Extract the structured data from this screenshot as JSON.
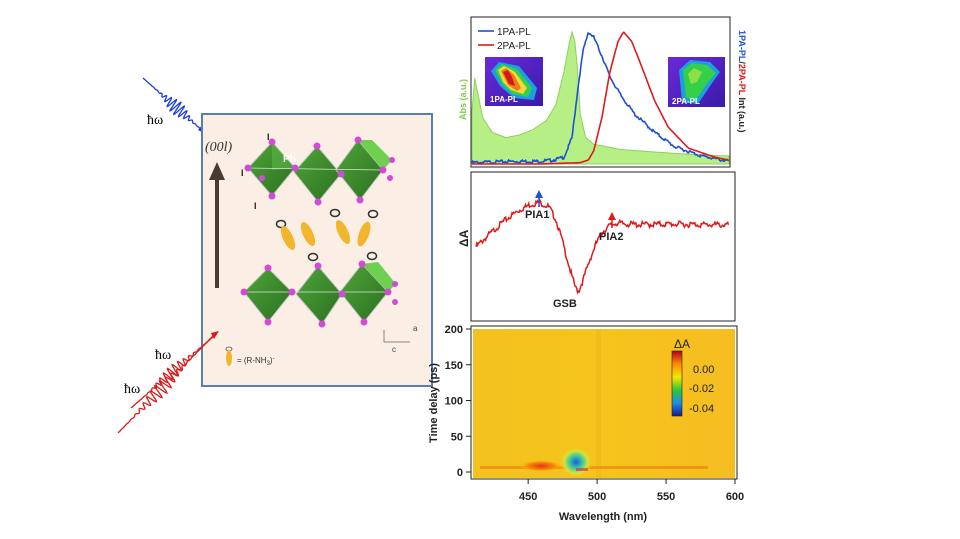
{
  "left_figure": {
    "photon_energy_label": "ħω",
    "direction_label": "(00l)",
    "pb_label": "Pb",
    "iodine_label": "I",
    "axis_a": "a",
    "axis_c": "c",
    "cation_label": "= (R-NH",
    "cation_subscript": "3",
    "cation_suffix": ")",
    "cation_superscript": "-",
    "colors": {
      "octahedra": "#3a8a2a",
      "iodine_atoms": "#d34ad8",
      "cation_chain": "#f2b52e",
      "box_fill": "#fbeee4",
      "box_border": "#5b7fa6",
      "one_photon_beam": "#1a3fd6",
      "two_photon_beam": "#d81a1a"
    }
  },
  "chart_data": [
    {
      "type": "line",
      "panel": "top",
      "series": [
        {
          "name": "1PA-PL",
          "color": "#1f4fd6",
          "x": [
            410,
            440,
            460,
            470,
            478,
            484,
            488,
            492,
            496,
            500,
            506,
            512,
            520,
            530,
            545,
            560,
            580,
            600
          ],
          "values": [
            0.01,
            0.02,
            0.02,
            0.03,
            0.05,
            0.2,
            0.55,
            0.85,
            1.0,
            0.96,
            0.82,
            0.66,
            0.52,
            0.38,
            0.24,
            0.13,
            0.06,
            0.02
          ]
        },
        {
          "name": "2PA-PL",
          "color": "#e01a1a",
          "x": [
            410,
            460,
            490,
            496,
            500,
            506,
            512,
            518,
            522,
            528,
            535,
            545,
            555,
            570,
            590,
            600
          ],
          "values": [
            0.0,
            0.0,
            0.01,
            0.03,
            0.1,
            0.35,
            0.7,
            0.93,
            1.0,
            0.93,
            0.75,
            0.48,
            0.28,
            0.12,
            0.05,
            0.03
          ]
        },
        {
          "name": "Abs",
          "color": "#99e06a",
          "x": [
            410,
            412,
            418,
            425,
            435,
            445,
            455,
            465,
            472,
            478,
            482,
            484,
            486,
            488,
            490,
            494,
            500,
            520,
            560,
            600
          ],
          "values": [
            0.4,
            0.65,
            0.35,
            0.24,
            0.2,
            0.22,
            0.26,
            0.33,
            0.45,
            0.7,
            0.92,
            1.0,
            0.93,
            0.72,
            0.38,
            0.2,
            0.15,
            0.11,
            0.08,
            0.06
          ]
        }
      ],
      "left_axis_label": "Abs (a.u.)",
      "right_axis_label": [
        "1PA-PL",
        "/",
        "2PA-PL",
        " Int (a.u.)"
      ],
      "legend_position": "top-left",
      "insets": [
        "1PA-PL",
        "2PA-PL"
      ]
    },
    {
      "type": "line",
      "panel": "middle",
      "ylabel": "ΔA",
      "series": [
        {
          "name": "",
          "color": "#e01a1a",
          "x": [
            410,
            420,
            430,
            440,
            450,
            458,
            465,
            470,
            474,
            478,
            482,
            485,
            487,
            490,
            495,
            500,
            505,
            510,
            515,
            530,
            560,
            600
          ],
          "values": [
            -0.3,
            -0.05,
            0.2,
            0.4,
            0.55,
            0.6,
            0.5,
            0.25,
            -0.1,
            -0.5,
            -0.9,
            -1.15,
            -1.2,
            -1.0,
            -0.6,
            -0.25,
            0.0,
            0.12,
            0.18,
            0.15,
            0.16,
            0.14
          ]
        }
      ],
      "annotations": [
        "PIA1",
        "GSB",
        "PIA2"
      ]
    },
    {
      "type": "heatmap",
      "panel": "bottom",
      "xlabel": "Wavelength (nm)",
      "ylabel": "Time delay (ps)",
      "x_ticks": [
        450,
        500,
        550,
        600
      ],
      "y_ticks": [
        0,
        50,
        100,
        150,
        200
      ],
      "xlim": [
        410,
        600
      ],
      "ylim": [
        0,
        200
      ],
      "colorbar_label": "ΔA",
      "colorbar_ticks": [
        "0.00",
        "-0.02",
        "-0.04"
      ]
    }
  ]
}
